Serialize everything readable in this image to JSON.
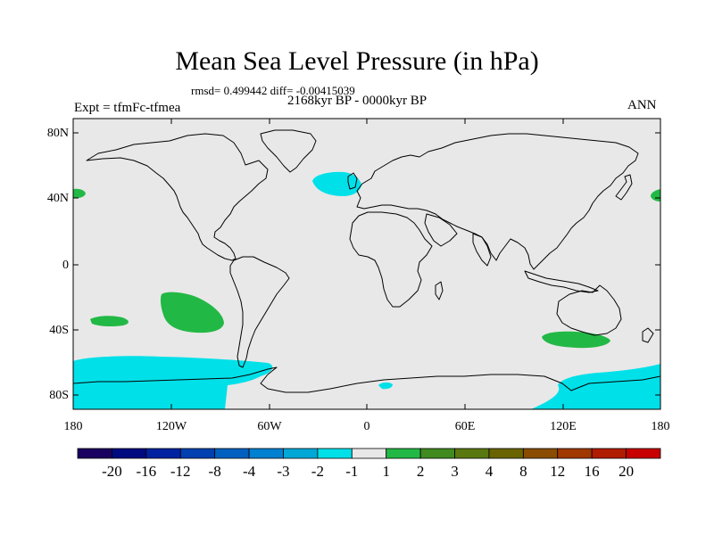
{
  "title": "Mean Sea Level Pressure (in hPa)",
  "stats": "rmsd= 0.499442 diff= -0.00415039",
  "period": "2168kyr BP - 0000kyr BP",
  "experiment": "Expt = tfmFc-tfmea",
  "season": "ANN",
  "map": {
    "background_color": "#e8e8e8",
    "lat_labels": [
      "80N",
      "40N",
      "0",
      "40S",
      "80S"
    ],
    "lon_labels": [
      "180",
      "120W",
      "60W",
      "0",
      "60E",
      "120E",
      "180"
    ]
  },
  "anomaly_regions": [
    {
      "name": "north-atlantic-negative",
      "category": "-2 to -1",
      "color": "#00e0e8"
    },
    {
      "name": "south-pacific-positive",
      "category": "1 to 2",
      "color": "#22b845"
    },
    {
      "name": "southern-ocean-negative",
      "category": "-2 to -1",
      "color": "#00e0e8"
    }
  ],
  "colorbar": {
    "colors": [
      "#1a0060",
      "#000a80",
      "#0022a0",
      "#0040b0",
      "#0060c0",
      "#0080d0",
      "#00a8d8",
      "#00e0e8",
      "#e8e8e8",
      "#22b845",
      "#408a20",
      "#5a7810",
      "#6a6400",
      "#8a4c00",
      "#a03800",
      "#b01c00",
      "#c80000"
    ],
    "labels": [
      "-20",
      "-16",
      "-12",
      "-8",
      "-4",
      "-3",
      "-2",
      "-1",
      "1",
      "2",
      "3",
      "4",
      "8",
      "12",
      "16",
      "20"
    ]
  }
}
